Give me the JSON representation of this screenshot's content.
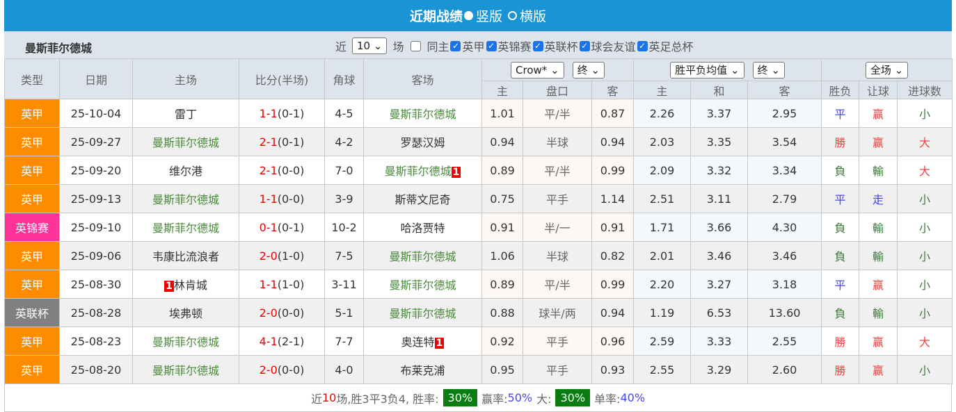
{
  "title": "近期战绩",
  "view_vertical": "竖版",
  "view_horizontal": "横版",
  "team": "曼斯菲尔德城",
  "filter": {
    "near": "近",
    "count": "10",
    "games": "场",
    "same_home": "同主",
    "leagues": [
      "英甲",
      "英锦赛",
      "英联杯",
      "球会友谊",
      "英足总杯"
    ]
  },
  "headers": {
    "type": "类型",
    "date": "日期",
    "home": "主场",
    "score": "比分(半场)",
    "corner": "角球",
    "away": "客场",
    "company_select": "Crow*",
    "final_select1": "终",
    "odds_select": "胜平负均值",
    "final_select2": "终",
    "scope_select": "全场",
    "sub": [
      "主",
      "盘口",
      "客",
      "主",
      "和",
      "客",
      "胜负",
      "让球",
      "进球数"
    ]
  },
  "league_colors": {
    "英甲": "#ff8c00",
    "英锦赛": "#ff3399",
    "英联杯": "#808080"
  },
  "rows": [
    {
      "type": "英甲",
      "date": "25-10-04",
      "home": "雷丁",
      "home_team": false,
      "score": "1-1",
      "half": "(0-1)",
      "corner": "4-5",
      "away": "曼斯菲尔德城",
      "away_team": true,
      "h": "1.01",
      "hc": "平/半",
      "a": "0.87",
      "w": "2.26",
      "d": "3.37",
      "l": "2.95",
      "r1": "平",
      "r2": "赢",
      "r3": "小"
    },
    {
      "type": "英甲",
      "date": "25-09-27",
      "home": "曼斯菲尔德城",
      "home_team": true,
      "score": "2-1",
      "half": "(0-1)",
      "corner": "4-2",
      "away": "罗瑟汉姆",
      "away_team": false,
      "h": "0.94",
      "hc": "半球",
      "a": "0.94",
      "w": "2.03",
      "d": "3.35",
      "l": "3.54",
      "r1": "勝",
      "r2": "赢",
      "r3": "大"
    },
    {
      "type": "英甲",
      "date": "25-09-20",
      "home": "维尔港",
      "home_team": false,
      "score": "2-1",
      "half": "(0-0)",
      "corner": "7-0",
      "away": "曼斯菲尔德城",
      "away_team": true,
      "away_red": "1",
      "h": "0.89",
      "hc": "平/半",
      "a": "0.99",
      "w": "2.09",
      "d": "3.32",
      "l": "3.34",
      "r1": "負",
      "r2": "輸",
      "r3": "大"
    },
    {
      "type": "英甲",
      "date": "25-09-13",
      "home": "曼斯菲尔德城",
      "home_team": true,
      "score": "1-1",
      "half": "(0-0)",
      "corner": "3-9",
      "away": "斯蒂文尼奇",
      "away_team": false,
      "h": "0.75",
      "hc": "平手",
      "a": "1.14",
      "w": "2.51",
      "d": "3.11",
      "l": "2.79",
      "r1": "平",
      "r2": "走",
      "r3": "小"
    },
    {
      "type": "英锦赛",
      "date": "25-09-10",
      "home": "曼斯菲尔德城",
      "home_team": true,
      "score": "0-1",
      "half": "(0-1)",
      "corner": "10-2",
      "away": "哈洛贾特",
      "away_team": false,
      "h": "0.91",
      "hc": "半/一",
      "a": "0.91",
      "w": "1.71",
      "d": "3.66",
      "l": "4.30",
      "r1": "負",
      "r2": "輸",
      "r3": "小"
    },
    {
      "type": "英甲",
      "date": "25-09-06",
      "home": "韦康比流浪者",
      "home_team": false,
      "score": "2-0",
      "half": "(1-0)",
      "corner": "7-5",
      "away": "曼斯菲尔德城",
      "away_team": true,
      "h": "1.06",
      "hc": "半球",
      "a": "0.82",
      "w": "2.01",
      "d": "3.46",
      "l": "3.46",
      "r1": "負",
      "r2": "輸",
      "r3": "小"
    },
    {
      "type": "英甲",
      "date": "25-08-30",
      "home": "林肯城",
      "home_team": false,
      "home_red": "1",
      "score": "1-1",
      "half": "(1-0)",
      "corner": "3-11",
      "away": "曼斯菲尔德城",
      "away_team": true,
      "h": "0.89",
      "hc": "平/半",
      "a": "0.99",
      "w": "2.20",
      "d": "3.27",
      "l": "3.18",
      "r1": "平",
      "r2": "赢",
      "r3": "小"
    },
    {
      "type": "英联杯",
      "date": "25-08-28",
      "home": "埃弗顿",
      "home_team": false,
      "score": "2-0",
      "half": "(0-0)",
      "corner": "5-1",
      "away": "曼斯菲尔德城",
      "away_team": true,
      "h": "0.88",
      "hc": "球半/两",
      "a": "0.94",
      "w": "1.19",
      "d": "6.53",
      "l": "13.60",
      "r1": "負",
      "r2": "輸",
      "r3": "小"
    },
    {
      "type": "英甲",
      "date": "25-08-23",
      "home": "曼斯菲尔德城",
      "home_team": true,
      "score": "4-1",
      "half": "(2-1)",
      "corner": "7-7",
      "away": "奥连特",
      "away_team": false,
      "away_red": "1",
      "h": "0.92",
      "hc": "平手",
      "a": "0.96",
      "w": "2.59",
      "d": "3.33",
      "l": "2.55",
      "r1": "勝",
      "r2": "赢",
      "r3": "大"
    },
    {
      "type": "英甲",
      "date": "25-08-20",
      "home": "曼斯菲尔德城",
      "home_team": true,
      "score": "2-0",
      "half": "(0-0)",
      "corner": "4-0",
      "away": "布莱克浦",
      "away_team": false,
      "h": "0.95",
      "hc": "平手",
      "a": "0.93",
      "w": "2.55",
      "d": "3.29",
      "l": "2.60",
      "r1": "勝",
      "r2": "赢",
      "r3": "小"
    }
  ],
  "footer": {
    "p1": "近",
    "n": "10",
    "p2": "场,胜3平3负4, 胜率:",
    "win_rate": "30%",
    "p3": "赢率:",
    "cover_rate": "50%",
    "p4": "大:",
    "over_rate": "30%",
    "p5": "单率:",
    "odd_rate": "40%"
  }
}
